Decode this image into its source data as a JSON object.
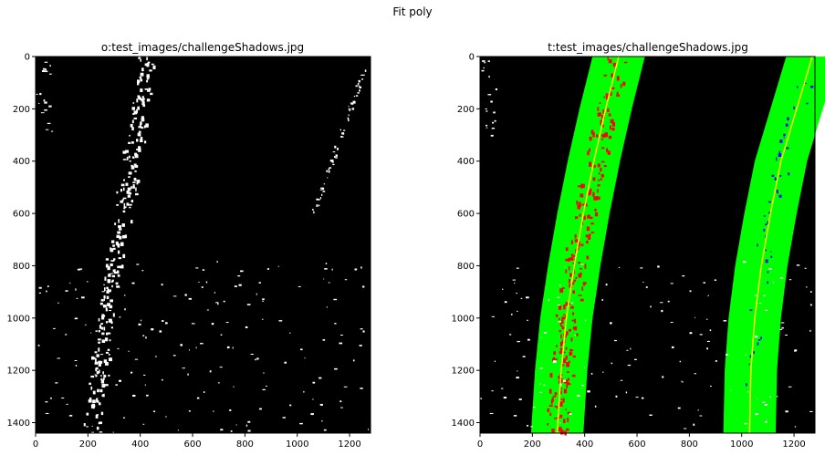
{
  "suptitle": "Fit poly",
  "chart_data": [
    {
      "type": "image",
      "title": "o:test_images/challengeShadows.jpg",
      "xlim": [
        0,
        1280
      ],
      "ylim": [
        1440,
        0
      ],
      "xticks": [
        0,
        200,
        400,
        600,
        800,
        1000,
        1200
      ],
      "yticks": [
        0,
        200,
        400,
        600,
        800,
        1000,
        1200,
        1400
      ],
      "background": "#000000",
      "pixel_color": "#ffffff",
      "content": "binary thresholded lane image"
    },
    {
      "type": "image",
      "title": "t:test_images/challengeShadows.jpg",
      "xlim": [
        0,
        1280
      ],
      "ylim": [
        1440,
        0
      ],
      "xticks": [
        0,
        200,
        400,
        600,
        800,
        1000,
        1200
      ],
      "yticks": [
        0,
        200,
        400,
        600,
        800,
        1000,
        1200,
        1400
      ],
      "background": "#000000",
      "search_window_color": "#00ff00",
      "fit_line_color": "#ffff00",
      "left_lane_pixel_color": "#ff0000",
      "right_lane_pixel_color": "#0000ff",
      "other_pixel_color": "#ffffff",
      "search_margin": 100,
      "series": [
        {
          "name": "left fit",
          "points": [
            [
              530,
              0
            ],
            [
              480,
              200
            ],
            [
              435,
              400
            ],
            [
              395,
              600
            ],
            [
              360,
              800
            ],
            [
              330,
              1000
            ],
            [
              310,
              1200
            ],
            [
              295,
              1440
            ]
          ]
        },
        {
          "name": "right fit",
          "points": [
            [
              1270,
              0
            ],
            [
              1210,
              200
            ],
            [
              1150,
              400
            ],
            [
              1110,
              600
            ],
            [
              1075,
              800
            ],
            [
              1050,
              1000
            ],
            [
              1035,
              1200
            ],
            [
              1030,
              1440
            ]
          ]
        }
      ]
    }
  ]
}
